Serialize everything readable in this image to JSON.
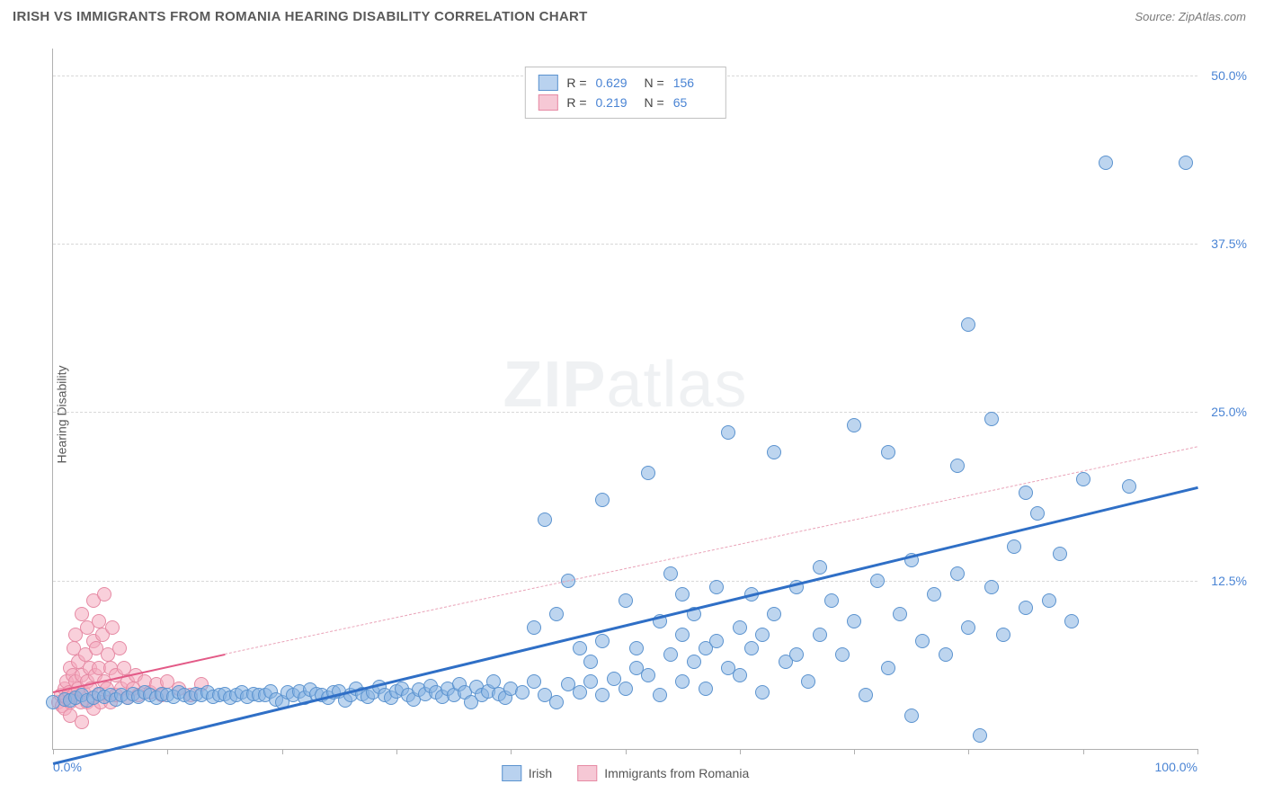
{
  "header": {
    "title": "IRISH VS IMMIGRANTS FROM ROMANIA HEARING DISABILITY CORRELATION CHART",
    "source": "Source: ZipAtlas.com"
  },
  "chart": {
    "type": "scatter",
    "ylabel": "Hearing Disability",
    "watermark": {
      "bold": "ZIP",
      "rest": "atlas"
    },
    "xlim": [
      0,
      100
    ],
    "ylim": [
      0,
      52
    ],
    "x_ticks": [
      0,
      10,
      20,
      30,
      40,
      50,
      60,
      70,
      80,
      90,
      100
    ],
    "x_tick_labels": {
      "0": "0.0%",
      "100": "100.0%"
    },
    "y_ticks": [
      12.5,
      25.0,
      37.5,
      50.0
    ],
    "y_tick_labels": [
      "12.5%",
      "25.0%",
      "37.5%",
      "50.0%"
    ],
    "grid_color": "#d8d8d8",
    "axis_color": "#b0b0b0",
    "background_color": "#ffffff",
    "series": [
      {
        "name": "Irish",
        "label": "Irish",
        "fill": "rgba(135,178,226,0.55)",
        "stroke": "#5b93cf",
        "swatch_fill": "#b9d2ef",
        "swatch_stroke": "#5b93cf",
        "marker_radius": 8,
        "r_value": "0.629",
        "n_value": "156",
        "trend": {
          "x1": 0,
          "y1": -1.0,
          "x2": 100,
          "y2": 19.5,
          "color": "#2f6fc6",
          "width": 2.5,
          "dashed": false
        },
        "points": [
          [
            0,
            3.5
          ],
          [
            1,
            3.7
          ],
          [
            1.5,
            3.6
          ],
          [
            2,
            3.8
          ],
          [
            2.5,
            4.0
          ],
          [
            3,
            3.6
          ],
          [
            3.5,
            3.8
          ],
          [
            4,
            4.1
          ],
          [
            4.5,
            3.9
          ],
          [
            5,
            4.0
          ],
          [
            5.5,
            3.7
          ],
          [
            6,
            4.0
          ],
          [
            6.5,
            3.8
          ],
          [
            7,
            4.1
          ],
          [
            7.5,
            3.9
          ],
          [
            8,
            4.2
          ],
          [
            8.5,
            4.0
          ],
          [
            9,
            3.8
          ],
          [
            9.5,
            4.1
          ],
          [
            10,
            4.0
          ],
          [
            10.5,
            3.9
          ],
          [
            11,
            4.2
          ],
          [
            11.5,
            4.0
          ],
          [
            12,
            3.8
          ],
          [
            12.5,
            4.1
          ],
          [
            13,
            4.0
          ],
          [
            13.5,
            4.2
          ],
          [
            14,
            3.9
          ],
          [
            14.5,
            4.0
          ],
          [
            15,
            4.1
          ],
          [
            15.5,
            3.8
          ],
          [
            16,
            4.0
          ],
          [
            16.5,
            4.2
          ],
          [
            17,
            3.9
          ],
          [
            17.5,
            4.1
          ],
          [
            18,
            4.0
          ],
          [
            18.5,
            4.0
          ],
          [
            19,
            4.3
          ],
          [
            19.5,
            3.7
          ],
          [
            20,
            3.5
          ],
          [
            20.5,
            4.2
          ],
          [
            21,
            4.0
          ],
          [
            21.5,
            4.3
          ],
          [
            22,
            3.8
          ],
          [
            22.5,
            4.4
          ],
          [
            23,
            4.1
          ],
          [
            23.5,
            4.0
          ],
          [
            24,
            3.8
          ],
          [
            24.5,
            4.2
          ],
          [
            25,
            4.3
          ],
          [
            25.5,
            3.6
          ],
          [
            26,
            4.0
          ],
          [
            26.5,
            4.5
          ],
          [
            27,
            4.1
          ],
          [
            27.5,
            3.9
          ],
          [
            28,
            4.2
          ],
          [
            28.5,
            4.6
          ],
          [
            29,
            4.0
          ],
          [
            29.5,
            3.8
          ],
          [
            30,
            4.3
          ],
          [
            30.5,
            4.5
          ],
          [
            31,
            4.0
          ],
          [
            31.5,
            3.7
          ],
          [
            32,
            4.4
          ],
          [
            32.5,
            4.1
          ],
          [
            33,
            4.7
          ],
          [
            33.5,
            4.2
          ],
          [
            34,
            3.9
          ],
          [
            34.5,
            4.5
          ],
          [
            35,
            4.0
          ],
          [
            35.5,
            4.8
          ],
          [
            36,
            4.2
          ],
          [
            36.5,
            3.5
          ],
          [
            37,
            4.6
          ],
          [
            37.5,
            4.0
          ],
          [
            38,
            4.3
          ],
          [
            38.5,
            5.0
          ],
          [
            39,
            4.1
          ],
          [
            39.5,
            3.8
          ],
          [
            40,
            4.5
          ],
          [
            41,
            4.2
          ],
          [
            42,
            5.0
          ],
          [
            42,
            9.0
          ],
          [
            43,
            4.0
          ],
          [
            43,
            17.0
          ],
          [
            44,
            3.5
          ],
          [
            44,
            10.0
          ],
          [
            45,
            4.8
          ],
          [
            45,
            12.5
          ],
          [
            46,
            4.2
          ],
          [
            46,
            7.5
          ],
          [
            47,
            5.0
          ],
          [
            47,
            6.5
          ],
          [
            48,
            4.0
          ],
          [
            48,
            8.0
          ],
          [
            48,
            18.5
          ],
          [
            49,
            5.2
          ],
          [
            50,
            4.5
          ],
          [
            50,
            11.0
          ],
          [
            51,
            6.0
          ],
          [
            51,
            7.5
          ],
          [
            52,
            5.5
          ],
          [
            52,
            20.5
          ],
          [
            53,
            4.0
          ],
          [
            53,
            9.5
          ],
          [
            54,
            7.0
          ],
          [
            54,
            13.0
          ],
          [
            55,
            5.0
          ],
          [
            55,
            8.5
          ],
          [
            55,
            11.5
          ],
          [
            56,
            6.5
          ],
          [
            56,
            10.0
          ],
          [
            57,
            4.5
          ],
          [
            57,
            7.5
          ],
          [
            58,
            8.0
          ],
          [
            58,
            12.0
          ],
          [
            59,
            6.0
          ],
          [
            59,
            23.5
          ],
          [
            60,
            5.5
          ],
          [
            60,
            9.0
          ],
          [
            61,
            7.5
          ],
          [
            61,
            11.5
          ],
          [
            62,
            4.2
          ],
          [
            62,
            8.5
          ],
          [
            63,
            10.0
          ],
          [
            63,
            22.0
          ],
          [
            64,
            6.5
          ],
          [
            65,
            7.0
          ],
          [
            65,
            12.0
          ],
          [
            66,
            5.0
          ],
          [
            67,
            8.5
          ],
          [
            67,
            13.5
          ],
          [
            68,
            11.0
          ],
          [
            69,
            7.0
          ],
          [
            70,
            24.0
          ],
          [
            70,
            9.5
          ],
          [
            71,
            4.0
          ],
          [
            72,
            12.5
          ],
          [
            73,
            6.0
          ],
          [
            73,
            22.0
          ],
          [
            74,
            10.0
          ],
          [
            75,
            2.5
          ],
          [
            75,
            14.0
          ],
          [
            76,
            8.0
          ],
          [
            77,
            11.5
          ],
          [
            78,
            7.0
          ],
          [
            79,
            13.0
          ],
          [
            79,
            21.0
          ],
          [
            80,
            9.0
          ],
          [
            80,
            31.5
          ],
          [
            81,
            1.0
          ],
          [
            82,
            12.0
          ],
          [
            82,
            24.5
          ],
          [
            83,
            8.5
          ],
          [
            84,
            15.0
          ],
          [
            85,
            10.5
          ],
          [
            85,
            19.0
          ],
          [
            86,
            17.5
          ],
          [
            87,
            11.0
          ],
          [
            88,
            14.5
          ],
          [
            89,
            9.5
          ],
          [
            90,
            20.0
          ],
          [
            92,
            43.5
          ],
          [
            94,
            19.5
          ],
          [
            99,
            43.5
          ]
        ]
      },
      {
        "name": "Immigrants from Romania",
        "label": "Immigrants from Romania",
        "fill": "rgba(244,170,190,0.55)",
        "stroke": "#e68aa4",
        "swatch_fill": "#f6c8d5",
        "swatch_stroke": "#e68aa4",
        "marker_radius": 8,
        "r_value": "0.219",
        "n_value": "65",
        "trend_solid": {
          "x1": 0,
          "y1": 4.3,
          "x2": 15,
          "y2": 7.1,
          "color": "#e35a87",
          "width": 2,
          "dashed": false
        },
        "trend_dashed": {
          "x1": 15,
          "y1": 7.1,
          "x2": 100,
          "y2": 22.5,
          "color": "#e9a3b8",
          "width": 1.5,
          "dashed": true
        },
        "points": [
          [
            0.5,
            3.5
          ],
          [
            0.7,
            4.0
          ],
          [
            0.8,
            3.2
          ],
          [
            1.0,
            4.5
          ],
          [
            1.0,
            3.0
          ],
          [
            1.2,
            5.0
          ],
          [
            1.2,
            3.8
          ],
          [
            1.4,
            4.2
          ],
          [
            1.5,
            6.0
          ],
          [
            1.5,
            3.5
          ],
          [
            1.5,
            2.5
          ],
          [
            1.7,
            5.5
          ],
          [
            1.8,
            4.0
          ],
          [
            1.8,
            7.5
          ],
          [
            2.0,
            3.8
          ],
          [
            2.0,
            5.0
          ],
          [
            2.0,
            8.5
          ],
          [
            2.2,
            4.5
          ],
          [
            2.2,
            6.5
          ],
          [
            2.4,
            3.5
          ],
          [
            2.5,
            5.5
          ],
          [
            2.5,
            10.0
          ],
          [
            2.5,
            2.0
          ],
          [
            2.7,
            4.2
          ],
          [
            2.8,
            7.0
          ],
          [
            3.0,
            5.0
          ],
          [
            3.0,
            9.0
          ],
          [
            3.0,
            3.5
          ],
          [
            3.2,
            6.0
          ],
          [
            3.3,
            4.5
          ],
          [
            3.5,
            8.0
          ],
          [
            3.5,
            11.0
          ],
          [
            3.5,
            3.0
          ],
          [
            3.7,
            5.5
          ],
          [
            3.8,
            7.5
          ],
          [
            4.0,
            4.0
          ],
          [
            4.0,
            9.5
          ],
          [
            4.0,
            6.0
          ],
          [
            4.2,
            3.5
          ],
          [
            4.3,
            8.5
          ],
          [
            4.5,
            5.0
          ],
          [
            4.5,
            11.5
          ],
          [
            4.7,
            4.5
          ],
          [
            4.8,
            7.0
          ],
          [
            5.0,
            6.0
          ],
          [
            5.0,
            3.5
          ],
          [
            5.2,
            9.0
          ],
          [
            5.5,
            5.5
          ],
          [
            5.5,
            4.0
          ],
          [
            5.8,
            7.5
          ],
          [
            6.0,
            4.5
          ],
          [
            6.2,
            6.0
          ],
          [
            6.5,
            5.0
          ],
          [
            6.5,
            3.8
          ],
          [
            7.0,
            4.5
          ],
          [
            7.2,
            5.5
          ],
          [
            7.5,
            4.0
          ],
          [
            8.0,
            5.0
          ],
          [
            8.5,
            4.2
          ],
          [
            9.0,
            4.8
          ],
          [
            9.5,
            4.0
          ],
          [
            10.0,
            5.0
          ],
          [
            11.0,
            4.5
          ],
          [
            12.0,
            4.0
          ],
          [
            13.0,
            4.8
          ]
        ]
      }
    ],
    "legend_top": {
      "r_label": "R =",
      "n_label": "N ="
    },
    "legend_bottom": {
      "items": [
        "Irish",
        "Immigrants from Romania"
      ]
    }
  }
}
